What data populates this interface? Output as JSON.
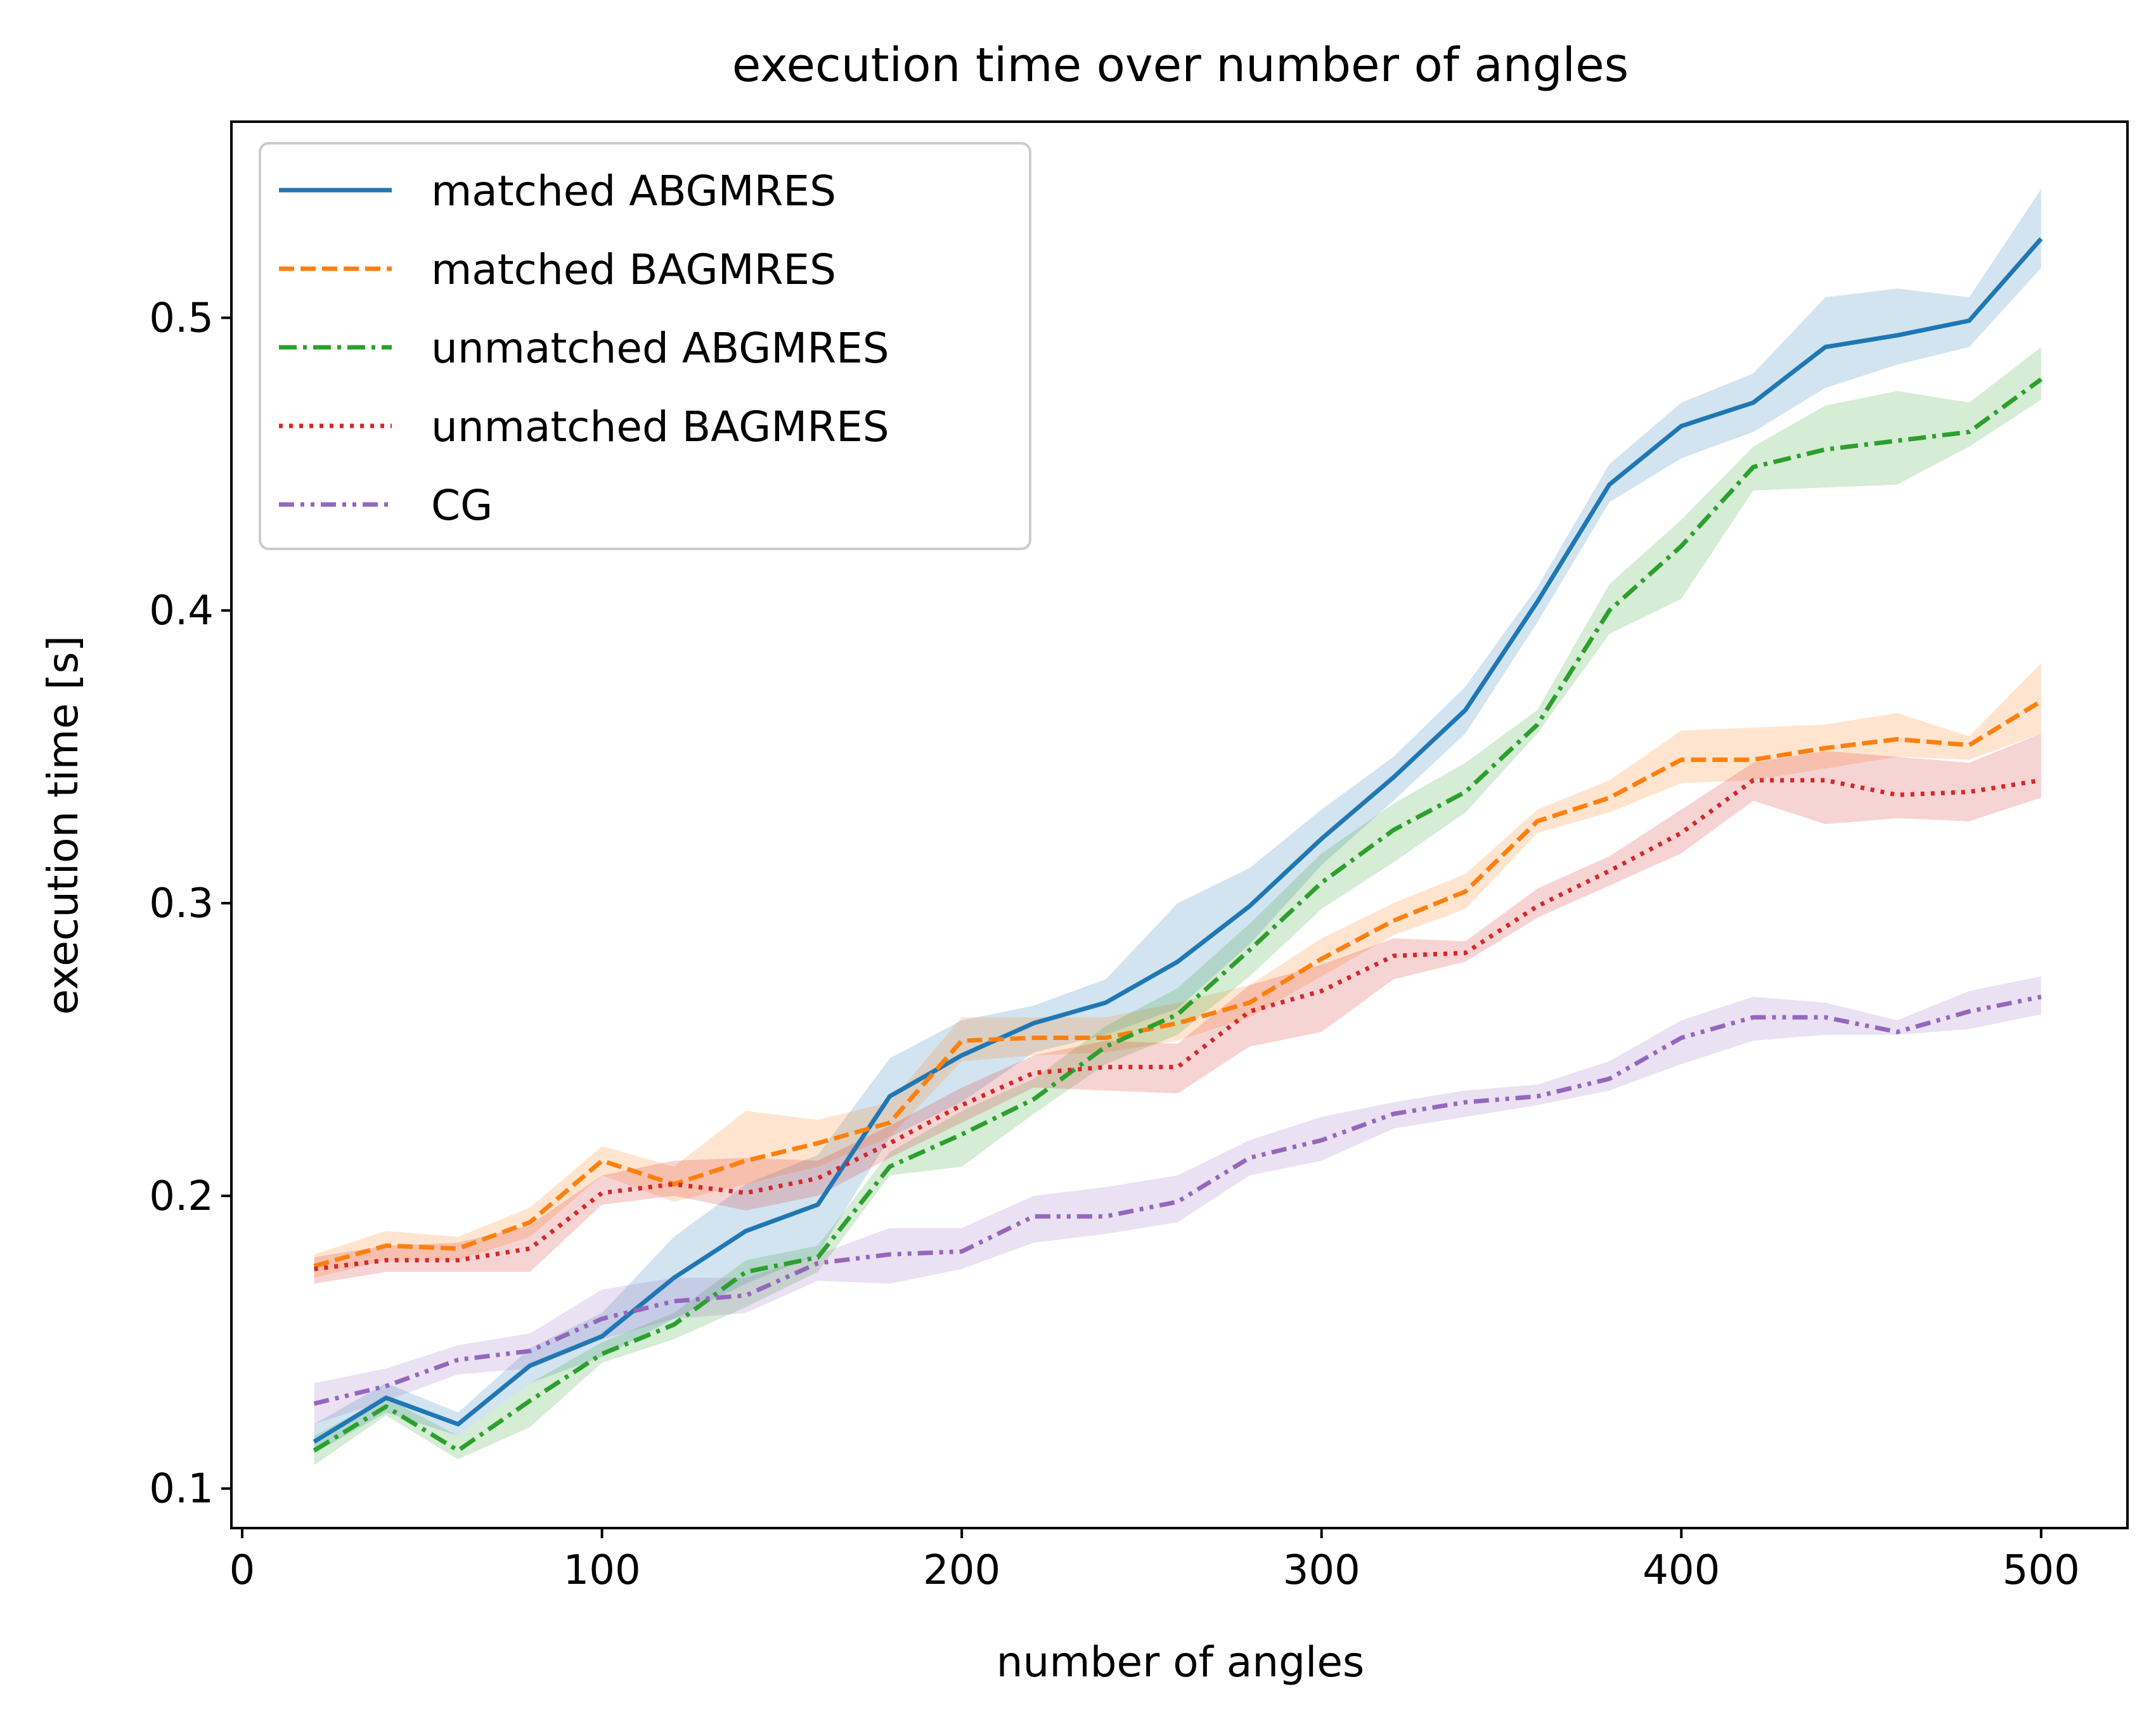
{
  "chart_data": {
    "type": "line",
    "title": "execution time over number of angles",
    "xlabel": "number of angles",
    "ylabel": "execution time [s]",
    "xlim": [
      -3,
      524
    ],
    "ylim": [
      0.0865,
      0.567
    ],
    "x_ticks": [
      0,
      100,
      200,
      300,
      400,
      500
    ],
    "y_ticks": [
      0.1,
      0.2,
      0.3,
      0.4,
      0.5
    ],
    "x_tick_labels": [
      "0",
      "100",
      "200",
      "300",
      "400",
      "500"
    ],
    "y_tick_labels": [
      "0.1",
      "0.2",
      "0.3",
      "0.4",
      "0.5"
    ],
    "grid": false,
    "legend_position": "top-left",
    "x": [
      20,
      40,
      60,
      80,
      100,
      120,
      140,
      160,
      180,
      200,
      220,
      240,
      260,
      280,
      300,
      320,
      340,
      360,
      380,
      400,
      420,
      440,
      460,
      480,
      500
    ],
    "series": [
      {
        "name": "matched ABGMRES",
        "color": "#1f77b4",
        "style": "solid",
        "values": [
          0.116,
          0.131,
          0.122,
          0.142,
          0.152,
          0.172,
          0.188,
          0.197,
          0.234,
          0.248,
          0.259,
          0.266,
          0.28,
          0.299,
          0.322,
          0.343,
          0.366,
          0.403,
          0.443,
          0.463,
          0.471,
          0.49,
          0.494,
          0.499,
          0.527
        ],
        "lower": [
          0.112,
          0.126,
          0.118,
          0.136,
          0.145,
          0.158,
          0.17,
          0.18,
          0.22,
          0.232,
          0.249,
          0.255,
          0.264,
          0.286,
          0.313,
          0.335,
          0.358,
          0.396,
          0.437,
          0.452,
          0.461,
          0.476,
          0.484,
          0.49,
          0.517
        ],
        "upper": [
          0.122,
          0.136,
          0.126,
          0.148,
          0.16,
          0.186,
          0.204,
          0.214,
          0.247,
          0.26,
          0.265,
          0.274,
          0.3,
          0.312,
          0.332,
          0.35,
          0.374,
          0.408,
          0.45,
          0.471,
          0.481,
          0.507,
          0.51,
          0.507,
          0.544
        ]
      },
      {
        "name": "matched BAGMRES",
        "color": "#ff7f0e",
        "style": "dashed",
        "values": [
          0.176,
          0.183,
          0.182,
          0.191,
          0.212,
          0.204,
          0.212,
          0.218,
          0.225,
          0.253,
          0.254,
          0.254,
          0.259,
          0.266,
          0.281,
          0.294,
          0.304,
          0.328,
          0.336,
          0.349,
          0.349,
          0.353,
          0.356,
          0.354,
          0.369
        ],
        "lower": [
          0.172,
          0.178,
          0.178,
          0.186,
          0.207,
          0.198,
          0.204,
          0.21,
          0.22,
          0.246,
          0.248,
          0.249,
          0.253,
          0.261,
          0.275,
          0.289,
          0.298,
          0.324,
          0.331,
          0.341,
          0.342,
          0.346,
          0.35,
          0.349,
          0.358
        ],
        "upper": [
          0.18,
          0.188,
          0.186,
          0.196,
          0.217,
          0.21,
          0.229,
          0.226,
          0.232,
          0.261,
          0.261,
          0.261,
          0.266,
          0.272,
          0.288,
          0.3,
          0.31,
          0.332,
          0.342,
          0.359,
          0.36,
          0.361,
          0.365,
          0.357,
          0.382
        ]
      },
      {
        "name": "unmatched ABGMRES",
        "color": "#2ca02c",
        "style": "dashdot",
        "values": [
          0.113,
          0.128,
          0.113,
          0.13,
          0.146,
          0.156,
          0.174,
          0.179,
          0.21,
          0.221,
          0.233,
          0.251,
          0.262,
          0.284,
          0.307,
          0.325,
          0.338,
          0.361,
          0.4,
          0.422,
          0.449,
          0.455,
          0.458,
          0.461,
          0.479
        ],
        "lower": [
          0.108,
          0.125,
          0.11,
          0.121,
          0.143,
          0.151,
          0.162,
          0.174,
          0.207,
          0.21,
          0.228,
          0.245,
          0.255,
          0.275,
          0.298,
          0.314,
          0.331,
          0.358,
          0.392,
          0.404,
          0.441,
          0.442,
          0.443,
          0.456,
          0.472
        ],
        "upper": [
          0.118,
          0.131,
          0.118,
          0.136,
          0.15,
          0.16,
          0.178,
          0.183,
          0.215,
          0.229,
          0.24,
          0.258,
          0.271,
          0.293,
          0.317,
          0.334,
          0.348,
          0.366,
          0.409,
          0.431,
          0.456,
          0.47,
          0.475,
          0.471,
          0.49
        ]
      },
      {
        "name": "unmatched BAGMRES",
        "color": "#d62728",
        "style": "dotted",
        "values": [
          0.175,
          0.178,
          0.178,
          0.182,
          0.201,
          0.204,
          0.201,
          0.206,
          0.218,
          0.231,
          0.242,
          0.244,
          0.244,
          0.263,
          0.27,
          0.282,
          0.283,
          0.299,
          0.311,
          0.324,
          0.342,
          0.342,
          0.337,
          0.338,
          0.342
        ],
        "lower": [
          0.17,
          0.174,
          0.174,
          0.174,
          0.197,
          0.2,
          0.195,
          0.2,
          0.213,
          0.225,
          0.237,
          0.236,
          0.235,
          0.251,
          0.256,
          0.274,
          0.28,
          0.295,
          0.306,
          0.317,
          0.335,
          0.327,
          0.329,
          0.328,
          0.336
        ],
        "upper": [
          0.179,
          0.183,
          0.184,
          0.19,
          0.207,
          0.212,
          0.213,
          0.212,
          0.224,
          0.237,
          0.248,
          0.253,
          0.252,
          0.272,
          0.279,
          0.288,
          0.287,
          0.305,
          0.316,
          0.332,
          0.348,
          0.352,
          0.35,
          0.348,
          0.358
        ]
      },
      {
        "name": "CG",
        "color": "#9467bd",
        "style": "dashdotdot",
        "values": [
          0.129,
          0.135,
          0.144,
          0.147,
          0.158,
          0.164,
          0.166,
          0.177,
          0.18,
          0.181,
          0.193,
          0.193,
          0.198,
          0.213,
          0.219,
          0.228,
          0.232,
          0.234,
          0.24,
          0.254,
          0.261,
          0.261,
          0.256,
          0.263,
          0.268
        ],
        "lower": [
          0.122,
          0.13,
          0.139,
          0.141,
          0.151,
          0.158,
          0.16,
          0.171,
          0.17,
          0.175,
          0.184,
          0.187,
          0.191,
          0.207,
          0.212,
          0.223,
          0.227,
          0.231,
          0.236,
          0.245,
          0.253,
          0.255,
          0.255,
          0.257,
          0.262
        ],
        "upper": [
          0.136,
          0.141,
          0.149,
          0.153,
          0.168,
          0.172,
          0.172,
          0.18,
          0.189,
          0.189,
          0.2,
          0.203,
          0.207,
          0.219,
          0.227,
          0.232,
          0.236,
          0.238,
          0.246,
          0.26,
          0.268,
          0.266,
          0.26,
          0.27,
          0.275
        ]
      }
    ]
  }
}
